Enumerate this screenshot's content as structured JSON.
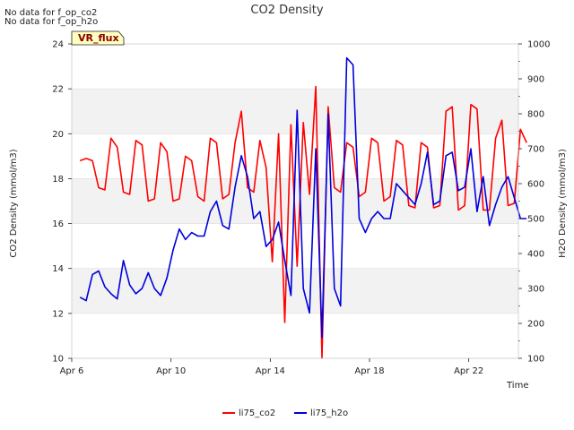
{
  "notes": [
    "No data for f_op_co2",
    "No data for f_op_h2o"
  ],
  "badge": "VR_flux",
  "chart_data": {
    "type": "line",
    "title": "CO2 Density",
    "xlabel": "Time",
    "ylabel": "CO2 Density (mmol/m3)",
    "y2label": "H2O Density (mmol/m3)",
    "xlim": [
      "2024-04-06",
      "2024-04-24"
    ],
    "ylim": [
      10,
      24
    ],
    "y2lim": [
      100,
      1000
    ],
    "x_ticks": [
      "Apr 6",
      "Apr 10",
      "Apr 14",
      "Apr 18",
      "Apr 22"
    ],
    "y_ticks": [
      10,
      12,
      14,
      16,
      18,
      20,
      22,
      24
    ],
    "y2_ticks": [
      100,
      200,
      300,
      400,
      500,
      600,
      700,
      800,
      900,
      1000
    ],
    "background_bands": "alternating light gray horizontal bands",
    "legend_position": "bottom-center",
    "series": [
      {
        "name": "li75_co2",
        "axis": "left",
        "color": "#ff0000",
        "x": [
          "2024-04-06 08:00",
          "2024-04-06 14:00",
          "2024-04-06 20:00",
          "2024-04-07 02:00",
          "2024-04-07 08:00",
          "2024-04-07 14:00",
          "2024-04-07 20:00",
          "2024-04-08 02:00",
          "2024-04-08 08:00",
          "2024-04-08 14:00",
          "2024-04-08 20:00",
          "2024-04-09 02:00",
          "2024-04-09 08:00",
          "2024-04-09 14:00",
          "2024-04-09 20:00",
          "2024-04-10 02:00",
          "2024-04-10 08:00",
          "2024-04-10 14:00",
          "2024-04-10 20:00",
          "2024-04-11 02:00",
          "2024-04-11 08:00",
          "2024-04-11 14:00",
          "2024-04-11 20:00",
          "2024-04-12 02:00",
          "2024-04-12 08:00",
          "2024-04-12 14:00",
          "2024-04-12 20:00",
          "2024-04-13 02:00",
          "2024-04-13 08:00",
          "2024-04-13 14:00",
          "2024-04-13 20:00",
          "2024-04-14 02:00",
          "2024-04-14 08:00",
          "2024-04-14 14:00",
          "2024-04-14 20:00",
          "2024-04-15 02:00",
          "2024-04-15 08:00",
          "2024-04-15 14:00",
          "2024-04-15 20:00",
          "2024-04-16 02:00",
          "2024-04-16 08:00",
          "2024-04-16 14:00",
          "2024-04-16 20:00",
          "2024-04-17 02:00",
          "2024-04-17 08:00",
          "2024-04-17 14:00",
          "2024-04-17 20:00",
          "2024-04-18 02:00",
          "2024-04-18 08:00",
          "2024-04-18 14:00",
          "2024-04-18 20:00",
          "2024-04-19 02:00",
          "2024-04-19 08:00",
          "2024-04-19 14:00",
          "2024-04-19 20:00",
          "2024-04-20 02:00",
          "2024-04-20 08:00",
          "2024-04-20 14:00",
          "2024-04-20 20:00",
          "2024-04-21 02:00",
          "2024-04-21 08:00",
          "2024-04-21 14:00",
          "2024-04-21 20:00",
          "2024-04-22 02:00",
          "2024-04-22 08:00",
          "2024-04-22 14:00",
          "2024-04-22 20:00",
          "2024-04-23 02:00",
          "2024-04-23 08:00",
          "2024-04-23 14:00",
          "2024-04-23 20:00",
          "2024-04-24 02:00",
          "2024-04-24 08:00"
        ],
        "values": [
          18.8,
          18.9,
          18.8,
          17.6,
          17.5,
          19.8,
          19.4,
          17.4,
          17.3,
          19.7,
          19.5,
          17.0,
          17.1,
          19.6,
          19.2,
          17.0,
          17.1,
          19.0,
          18.8,
          17.2,
          17.0,
          19.8,
          19.6,
          17.1,
          17.3,
          19.6,
          21.0,
          17.6,
          17.4,
          19.7,
          18.5,
          14.3,
          20.0,
          11.6,
          20.4,
          14.1,
          20.5,
          17.3,
          22.1,
          10.0,
          21.2,
          17.6,
          17.4,
          19.6,
          19.4,
          17.2,
          17.4,
          19.8,
          19.6,
          17.0,
          17.2,
          19.7,
          19.5,
          16.8,
          16.7,
          19.6,
          19.4,
          16.7,
          16.8,
          21.0,
          21.2,
          16.6,
          16.8,
          21.3,
          21.1,
          16.6,
          16.6,
          19.8,
          20.6,
          16.8,
          16.9,
          20.2,
          19.6
        ],
        "note": "estimated from chart"
      },
      {
        "name": "li75_h2o",
        "axis": "right",
        "color": "#0000dd",
        "x": [
          "2024-04-06 08:00",
          "2024-04-06 14:00",
          "2024-04-06 20:00",
          "2024-04-07 02:00",
          "2024-04-07 08:00",
          "2024-04-07 14:00",
          "2024-04-07 20:00",
          "2024-04-08 02:00",
          "2024-04-08 08:00",
          "2024-04-08 14:00",
          "2024-04-08 20:00",
          "2024-04-09 02:00",
          "2024-04-09 08:00",
          "2024-04-09 14:00",
          "2024-04-09 20:00",
          "2024-04-10 02:00",
          "2024-04-10 08:00",
          "2024-04-10 14:00",
          "2024-04-10 20:00",
          "2024-04-11 02:00",
          "2024-04-11 08:00",
          "2024-04-11 14:00",
          "2024-04-11 20:00",
          "2024-04-12 02:00",
          "2024-04-12 08:00",
          "2024-04-12 14:00",
          "2024-04-12 20:00",
          "2024-04-13 02:00",
          "2024-04-13 08:00",
          "2024-04-13 14:00",
          "2024-04-13 20:00",
          "2024-04-14 02:00",
          "2024-04-14 08:00",
          "2024-04-14 14:00",
          "2024-04-14 20:00",
          "2024-04-15 02:00",
          "2024-04-15 08:00",
          "2024-04-15 14:00",
          "2024-04-15 20:00",
          "2024-04-16 02:00",
          "2024-04-16 08:00",
          "2024-04-16 14:00",
          "2024-04-16 20:00",
          "2024-04-17 02:00",
          "2024-04-17 08:00",
          "2024-04-17 14:00",
          "2024-04-17 20:00",
          "2024-04-18 02:00",
          "2024-04-18 08:00",
          "2024-04-18 14:00",
          "2024-04-18 20:00",
          "2024-04-19 02:00",
          "2024-04-19 08:00",
          "2024-04-19 14:00",
          "2024-04-19 20:00",
          "2024-04-20 02:00",
          "2024-04-20 08:00",
          "2024-04-20 14:00",
          "2024-04-20 20:00",
          "2024-04-21 02:00",
          "2024-04-21 08:00",
          "2024-04-21 14:00",
          "2024-04-21 20:00",
          "2024-04-22 02:00",
          "2024-04-22 08:00",
          "2024-04-22 14:00",
          "2024-04-22 20:00",
          "2024-04-23 02:00",
          "2024-04-23 08:00",
          "2024-04-23 14:00",
          "2024-04-23 20:00",
          "2024-04-24 02:00",
          "2024-04-24 08:00"
        ],
        "values": [
          275,
          265,
          340,
          350,
          305,
          285,
          270,
          380,
          310,
          285,
          300,
          345,
          300,
          280,
          330,
          410,
          470,
          440,
          460,
          450,
          450,
          520,
          550,
          480,
          470,
          590,
          680,
          620,
          500,
          520,
          420,
          440,
          490,
          380,
          280,
          810,
          300,
          230,
          700,
          160,
          800,
          300,
          250,
          960,
          940,
          500,
          460,
          500,
          520,
          500,
          500,
          600,
          580,
          560,
          540,
          600,
          690,
          540,
          550,
          680,
          690,
          580,
          590,
          700,
          520,
          620,
          480,
          540,
          590,
          620,
          560,
          500,
          500
        ],
        "note": "estimated from chart"
      }
    ]
  }
}
